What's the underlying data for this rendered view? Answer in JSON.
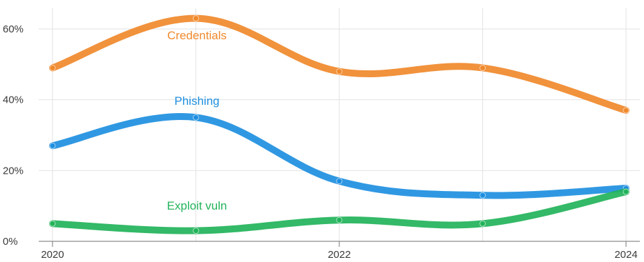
{
  "chart_data": {
    "type": "line",
    "x": [
      2020,
      2021,
      2022,
      2023,
      2024
    ],
    "x_ticks": [
      "2020",
      "2022",
      "2024"
    ],
    "xlim": [
      2020,
      2024
    ],
    "y_ticks": [
      "0%",
      "20%",
      "40%",
      "60%"
    ],
    "ylim": [
      0,
      65
    ],
    "grid": true,
    "legend": "inline labels",
    "series": [
      {
        "name": "Credentials",
        "color": "#F0892B",
        "values": [
          49,
          63,
          48,
          49,
          37
        ]
      },
      {
        "name": "Phishing",
        "color": "#1E8FE0",
        "values": [
          27,
          35,
          17,
          13,
          15
        ]
      },
      {
        "name": "Exploit vuln",
        "color": "#22B35A",
        "values": [
          5,
          3,
          6,
          5,
          14
        ]
      }
    ]
  }
}
